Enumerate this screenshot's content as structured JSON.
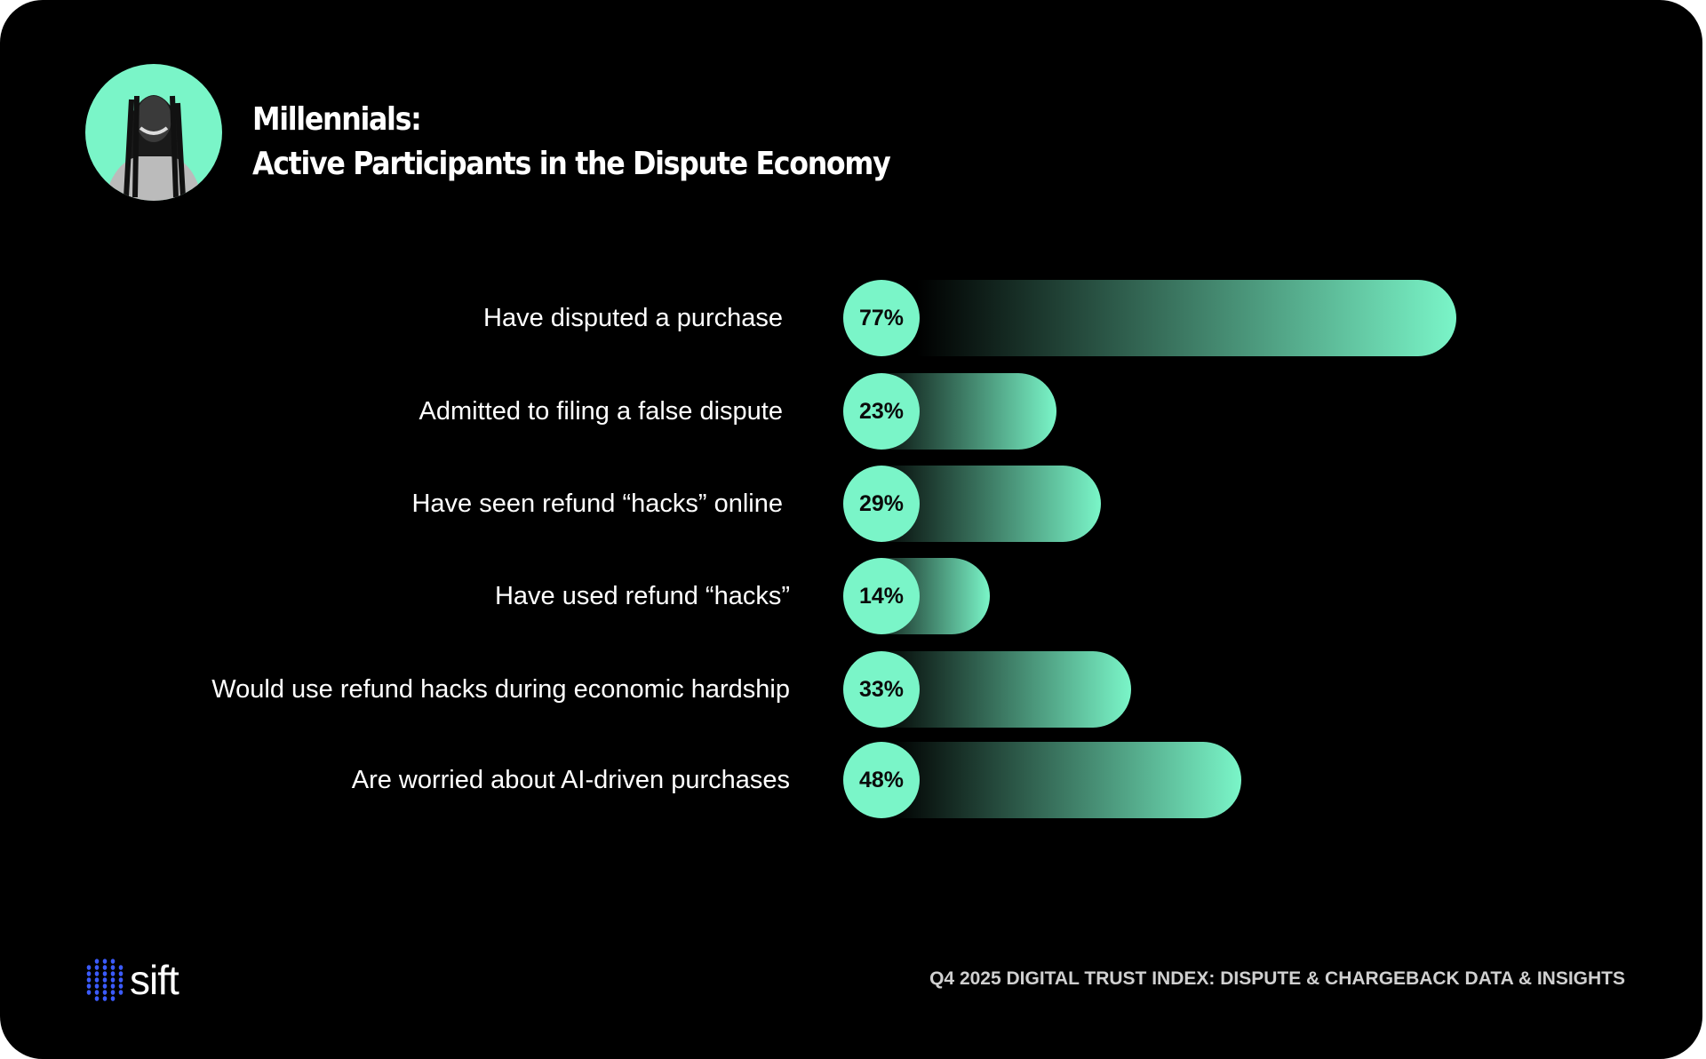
{
  "header": {
    "title_line1": "Millennials:",
    "title_line2": "Active Participants in the Dispute Economy"
  },
  "chart_data": {
    "type": "bar",
    "orientation": "horizontal",
    "categories": [
      "Have disputed a purchase",
      "Admitted to filing a false dispute",
      "Have seen refund “hacks” online",
      "Have used refund “hacks”",
      "Would use refund hacks during economic hardship",
      "Are worried about AI-driven purchases"
    ],
    "values": [
      77,
      23,
      29,
      14,
      33,
      48
    ],
    "value_labels": [
      "77%",
      "23%",
      "29%",
      "14%",
      "33%",
      "48%"
    ],
    "unit": "%",
    "grid": false,
    "colors": {
      "accent": "#7af5c8",
      "background": "#000000"
    }
  },
  "footer": {
    "logo": "sift",
    "logo_dots_color": "#3b5bff",
    "source": "Q4 2025 DIGITAL TRUST INDEX: DISPUTE & CHARGEBACK DATA & INSIGHTS"
  }
}
